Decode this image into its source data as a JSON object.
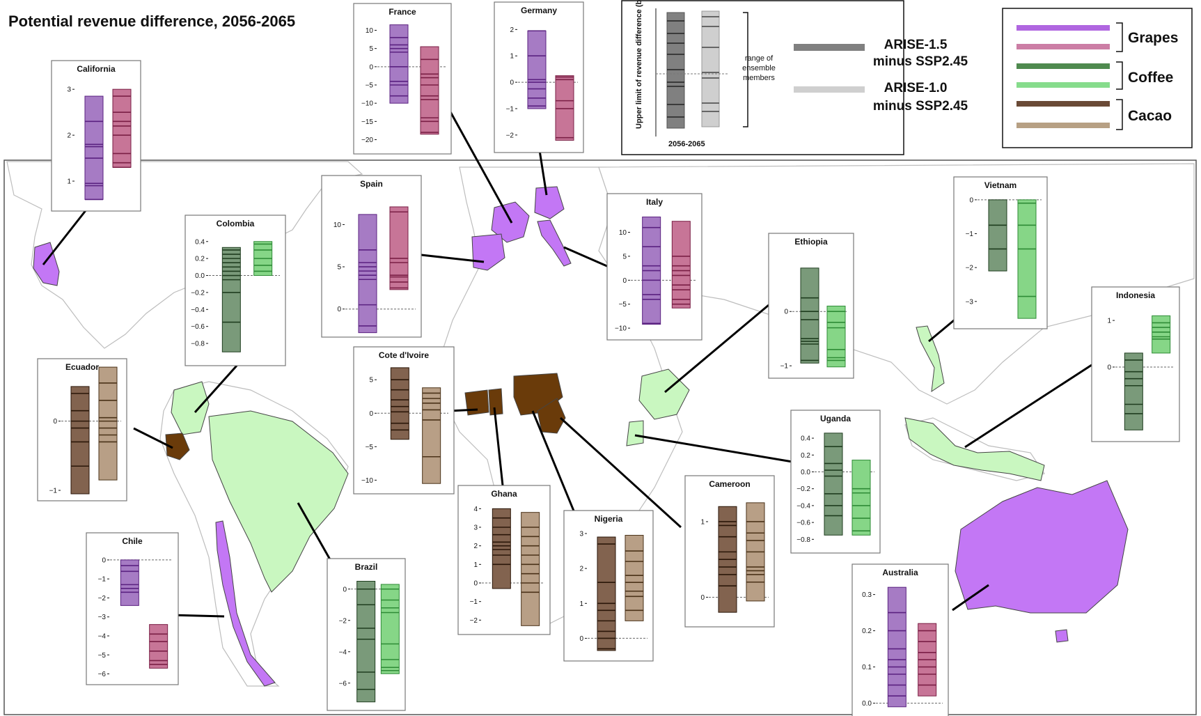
{
  "title": "Potential revenue difference, 2056-2065",
  "colors": {
    "grapes_15": "#a67bc4",
    "grapes_15_line": "#5a2180",
    "grapes_10": "#c77597",
    "grapes_10_line": "#7a1f45",
    "coffee_15": "#7a9a7a",
    "coffee_15_line": "#1f3d1f",
    "coffee_10": "#86d687",
    "coffee_10_line": "#2e8b36",
    "cacao_15": "#82634f",
    "cacao_15_line": "#2a1608",
    "cacao_10": "#b89f86",
    "cacao_10_line": "#4a3218",
    "grapes_country": "#c377f5",
    "coffee_country": "#c9f7c0",
    "cacao_country": "#6a3b0a",
    "map_border": "#bdbdbd"
  },
  "legend_ranges": {
    "ylabel": "Upper limit of revenue difference (bn)",
    "xlabel": "2056-2065",
    "annotation": "range of ensemble members",
    "series": [
      {
        "label_line1": "ARISE-1.5",
        "label_line2": "minus SSP2.45",
        "color": "#808080"
      },
      {
        "label_line1": "ARISE-1.0",
        "label_line2": "minus SSP2.45",
        "color": "#cfcfcf"
      }
    ]
  },
  "legend_crops": [
    {
      "name": "Grapes",
      "colors": [
        "#b066e0",
        "#cc7ea5"
      ]
    },
    {
      "name": "Coffee",
      "colors": [
        "#4f8a4f",
        "#86dc8c"
      ]
    },
    {
      "name": "Cacao",
      "colors": [
        "#6a4a36",
        "#b7a084"
      ]
    }
  ],
  "chart_data": [
    {
      "type": "range-strip",
      "country": "California",
      "crop": "Grapes",
      "ylim": [
        0.5,
        3.2
      ],
      "ticks": [
        "3",
        "2",
        "1"
      ],
      "series": [
        {
          "name": "ARISE-1.5 minus SSP2.45",
          "min": 0.6,
          "max": 2.85,
          "members": [
            0.6,
            0.9,
            0.95,
            1.5,
            1.75,
            1.8,
            2.3
          ]
        },
        {
          "name": "ARISE-1.0 minus SSP2.45",
          "min": 1.3,
          "max": 3.0,
          "members": [
            1.3,
            1.4,
            1.6,
            2.0,
            2.2,
            2.3,
            2.5,
            2.85
          ]
        }
      ]
    },
    {
      "type": "range-strip",
      "country": "France",
      "crop": "Grapes",
      "ylim": [
        -22,
        12
      ],
      "ticks": [
        "10",
        "5",
        "0",
        "−5",
        "−10",
        "−15",
        "−20"
      ],
      "series": [
        {
          "name": "ARISE-1.5 minus SSP2.45",
          "min": -10,
          "max": 11.5,
          "members": [
            -8,
            -5,
            -4,
            0,
            4,
            5,
            6,
            8
          ]
        },
        {
          "name": "ARISE-1.0 minus SSP2.45",
          "min": -18.5,
          "max": 5.5,
          "members": [
            -18,
            -15,
            -14,
            -9,
            -8,
            -5,
            -3,
            -2,
            2
          ]
        }
      ]
    },
    {
      "type": "range-strip",
      "country": "Germany",
      "crop": "Grapes",
      "ylim": [
        -2.4,
        2.3
      ],
      "ticks": [
        "2",
        "1",
        "0",
        "−1",
        "−2"
      ],
      "series": [
        {
          "name": "ARISE-1.5 minus SSP2.45",
          "min": -1.0,
          "max": 1.95,
          "members": [
            -0.9,
            -0.6,
            -0.25,
            0.0,
            0.1,
            1.0,
            1.95
          ]
        },
        {
          "name": "ARISE-1.0 minus SSP2.45",
          "min": -2.2,
          "max": 0.25,
          "members": [
            -2.1,
            -1.0,
            -0.7,
            0.1,
            0.2
          ]
        }
      ]
    },
    {
      "type": "range-strip",
      "country": "Spain",
      "crop": "Grapes",
      "ylim": [
        -2.5,
        13.5
      ],
      "ticks": [
        "10",
        "5",
        "0"
      ],
      "series": [
        {
          "name": "ARISE-1.5 minus SSP2.45",
          "min": -2.8,
          "max": 11.2,
          "members": [
            -2,
            0.5,
            3.5,
            4,
            4.5,
            5,
            5.5,
            7
          ]
        },
        {
          "name": "ARISE-1.0 minus SSP2.45",
          "min": 2.3,
          "max": 12.1,
          "members": [
            2.5,
            3.2,
            3.8,
            4,
            5.5,
            6,
            11.5
          ]
        }
      ]
    },
    {
      "type": "range-strip",
      "country": "Italy",
      "crop": "Grapes",
      "ylim": [
        -11,
        14
      ],
      "ticks": [
        "10",
        "5",
        "0",
        "−5",
        "−10"
      ],
      "series": [
        {
          "name": "ARISE-1.5 minus SSP2.45",
          "min": -9.2,
          "max": 13.2,
          "members": [
            -9,
            -4,
            -3,
            0,
            2,
            3,
            7,
            11
          ]
        },
        {
          "name": "ARISE-1.0 minus SSP2.45",
          "min": -5.8,
          "max": 12.3,
          "members": [
            -5,
            -4,
            -2,
            -1,
            1,
            2,
            3,
            5
          ]
        }
      ]
    },
    {
      "type": "range-strip",
      "country": "Colombia",
      "crop": "Coffee",
      "ylim": [
        -0.98,
        0.48
      ],
      "ticks": [
        "0.4",
        "0.2",
        "0.0",
        "−0.2",
        "−0.4",
        "−0.6",
        "−0.8"
      ],
      "series": [
        {
          "name": "ARISE-1.5 minus SSP2.45",
          "min": -0.9,
          "max": 0.33,
          "members": [
            -0.55,
            -0.2,
            -0.05,
            0.0,
            0.05,
            0.1,
            0.15,
            0.2,
            0.25,
            0.3
          ]
        },
        {
          "name": "ARISE-1.0 minus SSP2.45",
          "min": 0.0,
          "max": 0.4,
          "members": [
            0.05,
            0.12,
            0.2,
            0.3,
            0.37
          ]
        }
      ]
    },
    {
      "type": "range-strip",
      "country": "Ethiopia",
      "crop": "Coffee",
      "ylim": [
        -1.1,
        1.08
      ],
      "ticks": [
        "0",
        "−1"
      ],
      "series": [
        {
          "name": "ARISE-1.5 minus SSP2.45",
          "min": -0.95,
          "max": 0.8,
          "members": [
            -0.9,
            -0.6,
            -0.55,
            -0.5,
            -0.15,
            0.0,
            0.25
          ]
        },
        {
          "name": "ARISE-1.0 minus SSP2.45",
          "min": -1.02,
          "max": 0.1,
          "members": [
            -0.9,
            -0.85,
            -0.7,
            -0.3,
            -0.2,
            0.0
          ]
        }
      ]
    },
    {
      "type": "range-strip",
      "country": "Vietnam",
      "crop": "Coffee",
      "ylim": [
        -3.6,
        0.1
      ],
      "ticks": [
        "0",
        "−1",
        "−2",
        "−3"
      ],
      "series": [
        {
          "name": "ARISE-1.5 minus SSP2.45",
          "min": -2.1,
          "max": 0.0,
          "members": [
            -1.45,
            -0.75
          ]
        },
        {
          "name": "ARISE-1.0 minus SSP2.45",
          "min": -3.5,
          "max": 0.0,
          "members": [
            -2.85,
            -1.45,
            -0.75,
            -0.1
          ]
        }
      ]
    },
    {
      "type": "range-strip",
      "country": "Indonesia",
      "crop": "Coffee",
      "ylim": [
        -1.45,
        1.3
      ],
      "ticks": [
        "1",
        "0"
      ],
      "series": [
        {
          "name": "ARISE-1.5 minus SSP2.45",
          "min": -1.35,
          "max": 0.3,
          "members": [
            -1.0,
            -0.8,
            -0.4,
            -0.25,
            -0.1,
            0.15
          ]
        },
        {
          "name": "ARISE-1.0 minus SSP2.45",
          "min": 0.3,
          "max": 1.1,
          "members": [
            0.6,
            0.65,
            0.75,
            0.85,
            0.95
          ]
        }
      ]
    },
    {
      "type": "range-strip",
      "country": "Uganda",
      "crop": "Coffee",
      "ylim": [
        -0.88,
        0.5
      ],
      "ticks": [
        "0.4",
        "0.2",
        "0.0",
        "−0.2",
        "−0.4",
        "−0.6",
        "−0.8"
      ],
      "series": [
        {
          "name": "ARISE-1.5 minus SSP2.45",
          "min": -0.75,
          "max": 0.46,
          "members": [
            -0.52,
            -0.4,
            -0.26,
            -0.05,
            0.02,
            0.1,
            0.3
          ]
        },
        {
          "name": "ARISE-1.0 minus SSP2.45",
          "min": -0.75,
          "max": 0.14,
          "members": [
            -0.7,
            -0.55,
            -0.4,
            -0.25,
            -0.2
          ]
        }
      ]
    },
    {
      "type": "range-strip",
      "country": "Brazil",
      "crop": "Coffee",
      "ylim": [
        -7.3,
        0.7
      ],
      "ticks": [
        "0",
        "−2",
        "−4",
        "−6"
      ],
      "series": [
        {
          "name": "ARISE-1.5 minus SSP2.45",
          "min": -7.2,
          "max": 0.5,
          "members": [
            -6.4,
            -5.3,
            -3.2,
            -2.5,
            -1.0,
            0.0
          ]
        },
        {
          "name": "ARISE-1.0 minus SSP2.45",
          "min": -5.4,
          "max": 0.3,
          "members": [
            -5.2,
            -5.0,
            -4.5,
            -3.5,
            -1.5,
            -1.2,
            -0.7,
            0.0
          ]
        }
      ]
    },
    {
      "type": "range-strip",
      "country": "Ecuador",
      "crop": "Cacao",
      "ylim": [
        -1.05,
        0.62
      ],
      "ticks": [
        "0",
        "−1"
      ],
      "series": [
        {
          "name": "ARISE-1.5 minus SSP2.45",
          "min": -1.05,
          "max": 0.5,
          "members": [
            -0.65,
            -0.3,
            -0.1,
            0.0,
            0.15,
            0.4
          ]
        },
        {
          "name": "ARISE-1.0 minus SSP2.45",
          "min": -0.85,
          "max": 0.78,
          "members": [
            -0.3,
            -0.2,
            -0.1,
            0.0,
            0.05,
            0.3,
            0.55
          ]
        }
      ]
    },
    {
      "type": "range-strip",
      "country": "Cote d'Ivoire",
      "crop": "Cacao",
      "ylim": [
        -11,
        7
      ],
      "ticks": [
        "5",
        "0",
        "−5",
        "−10"
      ],
      "series": [
        {
          "name": "ARISE-1.5 minus SSP2.45",
          "min": -3.9,
          "max": 6.8,
          "members": [
            -2.5,
            -1.5,
            0.2,
            1.0,
            2.0,
            3.5,
            5.0
          ]
        },
        {
          "name": "ARISE-1.0 minus SSP2.45",
          "min": -10.5,
          "max": 3.8,
          "members": [
            -6.5,
            -1.0,
            0.5,
            1.5,
            2.2,
            3.0
          ]
        }
      ]
    },
    {
      "type": "range-strip",
      "country": "Ghana",
      "crop": "Cacao",
      "ylim": [
        -2.4,
        4.2
      ],
      "ticks": [
        "4",
        "3",
        "2",
        "1",
        "0",
        "−1",
        "−2"
      ],
      "series": [
        {
          "name": "ARISE-1.5 minus SSP2.45",
          "min": -0.3,
          "max": 4.0,
          "members": [
            1.0,
            1.5,
            1.8,
            2.0,
            2.2,
            2.6,
            3.0,
            3.5
          ]
        },
        {
          "name": "ARISE-1.0 minus SSP2.45",
          "min": -2.3,
          "max": 3.8,
          "members": [
            -0.5,
            0.0,
            0.5,
            1.0,
            1.5,
            2.0,
            2.5,
            3.0
          ]
        }
      ]
    },
    {
      "type": "range-strip",
      "country": "Nigeria",
      "crop": "Cacao",
      "ylim": [
        -0.45,
        3.1
      ],
      "ticks": [
        "3",
        "2",
        "1",
        "0"
      ],
      "series": [
        {
          "name": "ARISE-1.5 minus SSP2.45",
          "min": -0.35,
          "max": 2.9,
          "members": [
            -0.3,
            0.0,
            0.2,
            0.5,
            0.8,
            1.0,
            1.6,
            2.7
          ]
        },
        {
          "name": "ARISE-1.0 minus SSP2.45",
          "min": 0.5,
          "max": 2.95,
          "members": [
            0.8,
            1.2,
            1.35,
            1.6,
            1.8,
            2.2,
            2.5
          ]
        }
      ]
    },
    {
      "type": "range-strip",
      "country": "Cameroon",
      "crop": "Cacao",
      "ylim": [
        -0.3,
        1.35
      ],
      "ticks": [
        "1",
        "0"
      ],
      "series": [
        {
          "name": "ARISE-1.5 minus SSP2.45",
          "min": -0.2,
          "max": 1.2,
          "members": [
            0.15,
            0.3,
            0.4,
            0.5,
            0.6,
            0.8,
            0.95,
            1.0
          ]
        },
        {
          "name": "ARISE-1.0 minus SSP2.45",
          "min": -0.05,
          "max": 1.25,
          "members": [
            0.2,
            0.3,
            0.35,
            0.4,
            0.6,
            0.75,
            0.85,
            1.0
          ]
        }
      ]
    },
    {
      "type": "range-strip",
      "country": "Chile",
      "crop": "Grapes",
      "ylim": [
        -6.2,
        0.4
      ],
      "ticks": [
        "0",
        "−1",
        "−2",
        "−3",
        "−4",
        "−5",
        "−6"
      ],
      "series": [
        {
          "name": "ARISE-1.5 minus SSP2.45",
          "min": -2.4,
          "max": 0.0,
          "members": [
            -1.7,
            -1.5,
            -1.3,
            -0.6,
            -0.3
          ]
        },
        {
          "name": "ARISE-1.0 minus SSP2.45",
          "min": -5.7,
          "max": -3.4,
          "members": [
            -5.5,
            -5.3,
            -4.8,
            -4.3,
            -3.9
          ]
        }
      ]
    },
    {
      "type": "range-strip",
      "country": "Australia",
      "crop": "Grapes",
      "ylim": [
        -0.02,
        0.33
      ],
      "ticks": [
        "0.3",
        "0.2",
        "0.1",
        "0.0"
      ],
      "series": [
        {
          "name": "ARISE-1.5 minus SSP2.45",
          "min": -0.01,
          "max": 0.32,
          "members": [
            0.02,
            0.05,
            0.08,
            0.1,
            0.12,
            0.15,
            0.2,
            0.25
          ]
        },
        {
          "name": "ARISE-1.0 minus SSP2.45",
          "min": 0.02,
          "max": 0.22,
          "members": [
            0.05,
            0.08,
            0.1,
            0.12,
            0.14,
            0.17,
            0.2
          ]
        }
      ]
    }
  ]
}
